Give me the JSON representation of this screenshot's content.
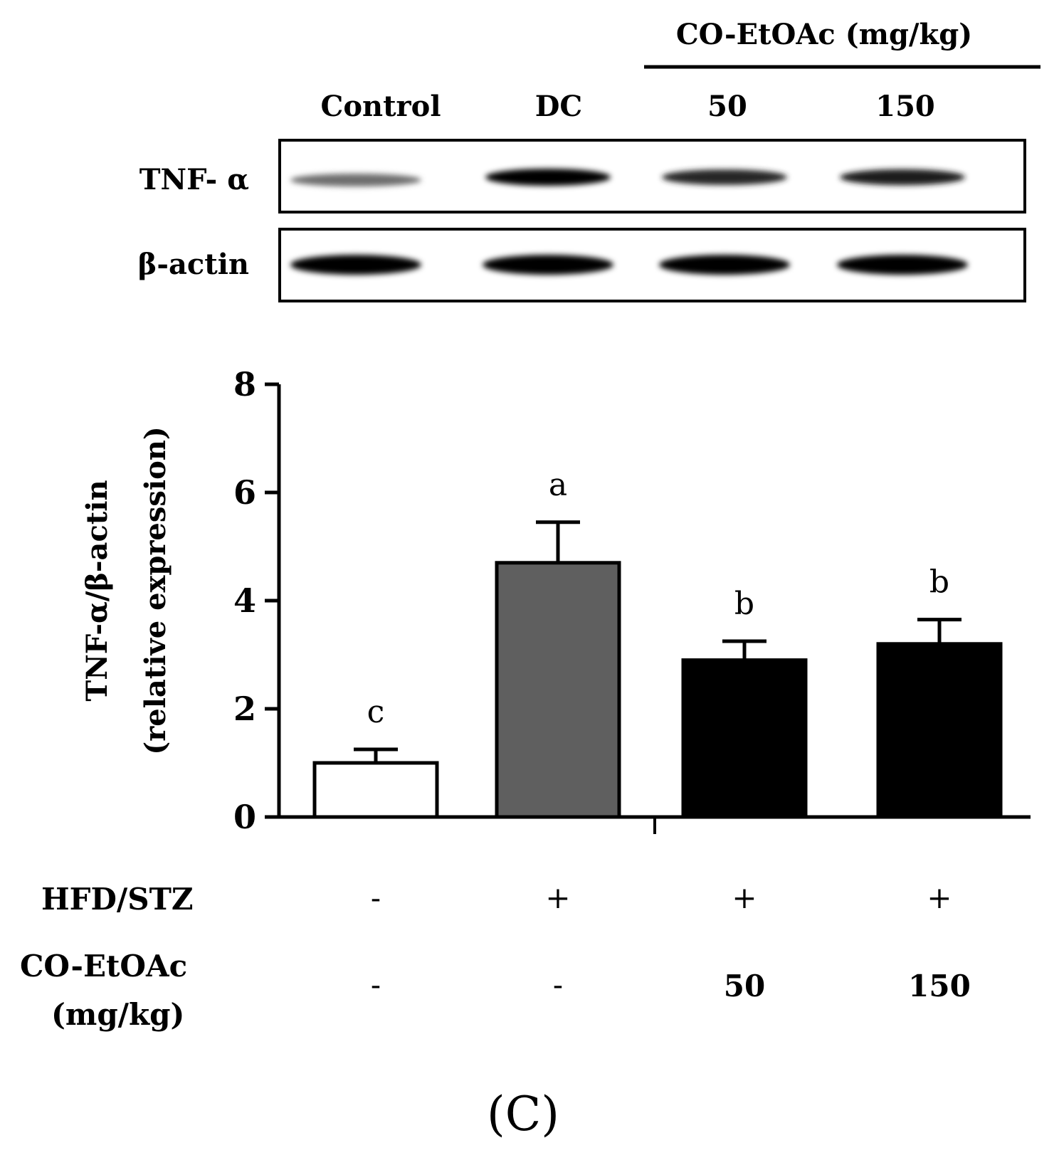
{
  "blot": {
    "group_header": "CO-EtOAc (mg/kg)",
    "lanes": [
      "Control",
      "DC",
      "50",
      "150"
    ],
    "rows": [
      {
        "label": "TNF- α",
        "intensity": [
          0.45,
          1.0,
          0.8,
          0.85
        ]
      },
      {
        "label": "β-actin",
        "intensity": [
          1.0,
          1.0,
          1.0,
          1.0
        ]
      }
    ]
  },
  "chart_data": {
    "type": "bar",
    "title": "",
    "xlabel": "",
    "ylabel_line1": "TNF-α/β-actin",
    "ylabel_line2": "(relative expression)",
    "ylim": [
      0,
      8
    ],
    "yticks": [
      "0",
      "2",
      "4",
      "6",
      "8"
    ],
    "categories": [
      "Control",
      "DC",
      "50",
      "150"
    ],
    "values": [
      1.0,
      4.7,
      2.9,
      3.2
    ],
    "errors": [
      0.25,
      0.75,
      0.35,
      0.45
    ],
    "sig_letters": [
      "c",
      "a",
      "b",
      "b"
    ],
    "bar_colors": [
      "#ffffff",
      "#5f5f5f",
      "#000000",
      "#000000"
    ]
  },
  "treatment_table": {
    "rows": [
      {
        "label": "HFD/STZ",
        "values": [
          "-",
          "+",
          "+",
          "+"
        ]
      },
      {
        "label_line1": "CO-EtOAc",
        "label_line2": "(mg/kg)",
        "values": [
          "-",
          "-",
          "50",
          "150"
        ]
      }
    ]
  },
  "panel_label": "(C)"
}
